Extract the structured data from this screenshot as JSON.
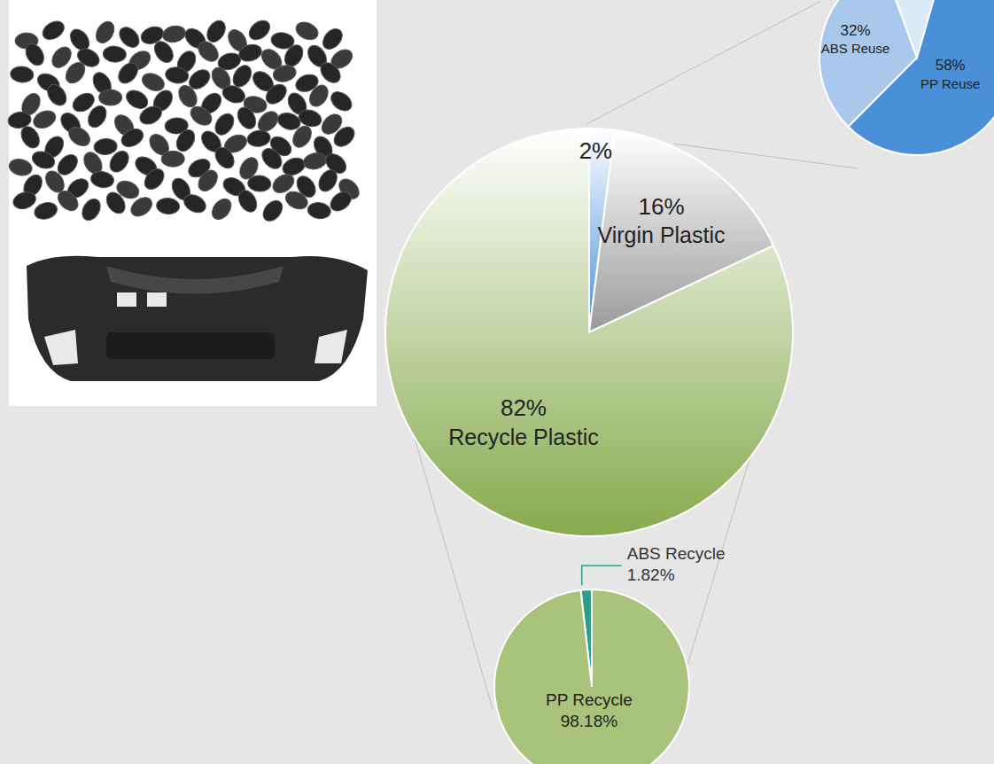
{
  "chart_data": [
    {
      "type": "pie",
      "categories": [
        null,
        "Virgin Plastic",
        "Recycle Plastic"
      ],
      "values": [
        2,
        16,
        82
      ],
      "value_labels": [
        "2%",
        "16%",
        "82%"
      ],
      "colors": [
        "#4a8fd9",
        "#9a9a9a",
        "#86aa4c"
      ],
      "data_labels": true
    },
    {
      "type": "pie",
      "categories": [
        "ABS Reuse",
        "PP Reuse",
        null
      ],
      "values": [
        32,
        58,
        10
      ],
      "value_labels": [
        "32%",
        "58%",
        null
      ],
      "colors": [
        "#a9c9ec",
        "#4a90d9",
        "#dce9f7"
      ],
      "data_labels": true
    },
    {
      "type": "pie",
      "categories": [
        "ABS Recycle",
        "PP Recycle"
      ],
      "values": [
        1.82,
        98.18
      ],
      "value_labels": [
        "1.82%",
        "98.18%"
      ],
      "colors": [
        "#2e9e8a",
        "#a9c47a"
      ],
      "data_labels": true
    }
  ]
}
